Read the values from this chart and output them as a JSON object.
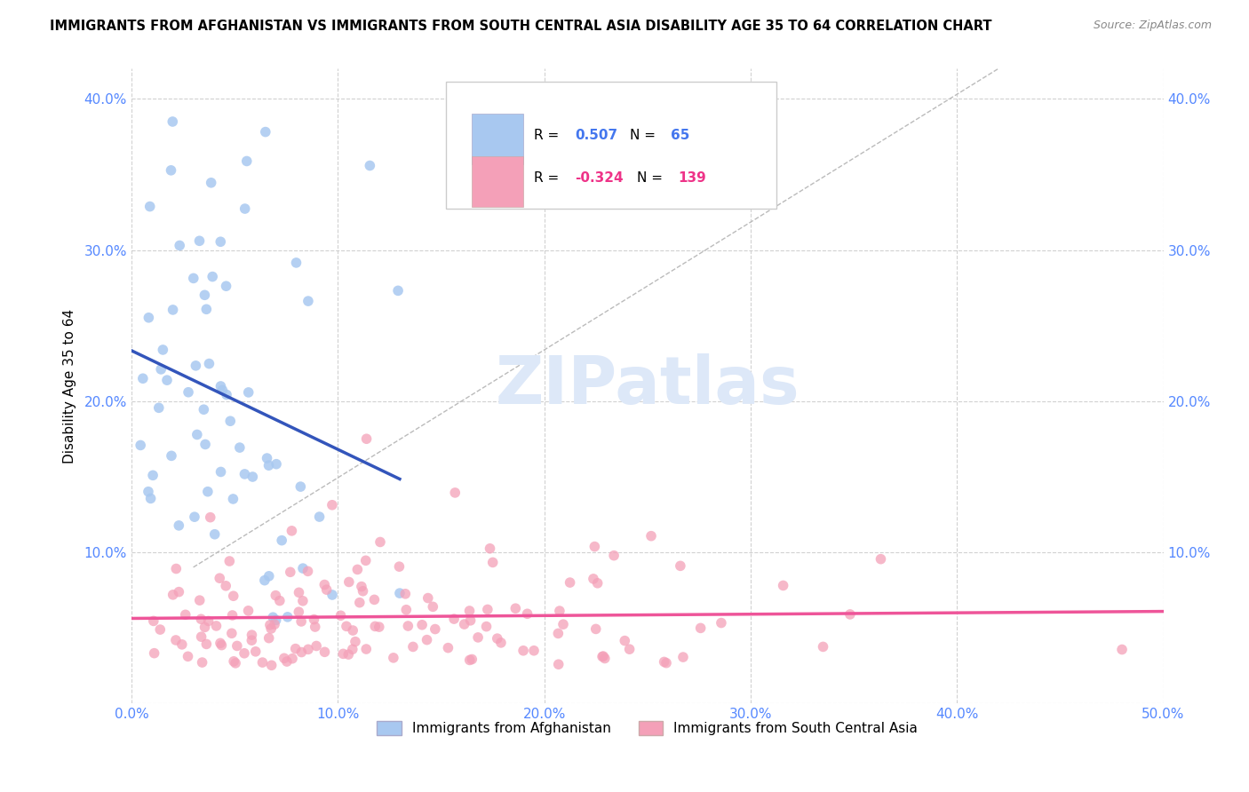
{
  "title": "IMMIGRANTS FROM AFGHANISTAN VS IMMIGRANTS FROM SOUTH CENTRAL ASIA DISABILITY AGE 35 TO 64 CORRELATION CHART",
  "source": "Source: ZipAtlas.com",
  "ylabel": "Disability Age 35 to 64",
  "xlim": [
    0.0,
    0.5
  ],
  "ylim": [
    0.0,
    0.42
  ],
  "x_tick_vals": [
    0.0,
    0.1,
    0.2,
    0.3,
    0.4,
    0.5
  ],
  "x_tick_labels": [
    "0.0%",
    "10.0%",
    "20.0%",
    "30.0%",
    "40.0%",
    "50.0%"
  ],
  "y_tick_vals": [
    0.0,
    0.1,
    0.2,
    0.3,
    0.4
  ],
  "y_tick_labels": [
    "",
    "10.0%",
    "20.0%",
    "30.0%",
    "40.0%"
  ],
  "r_afghanistan": 0.507,
  "n_afghanistan": 65,
  "r_south_central": -0.324,
  "n_south_central": 139,
  "color_afghanistan": "#a8c8f0",
  "color_south_central": "#f4a0b8",
  "line_color_afghanistan": "#3355bb",
  "line_color_south_central": "#ee5599",
  "watermark_color": "#dde8f8",
  "background_color": "#ffffff",
  "grid_color": "#cccccc",
  "tick_color": "#5588ff",
  "legend_box_color": "#e8e8e8",
  "legend_r_color_blue": "#4477ee",
  "legend_r_color_pink": "#ee3388",
  "legend_n_color_blue": "#4477ee",
  "legend_n_color_pink": "#ee3388"
}
